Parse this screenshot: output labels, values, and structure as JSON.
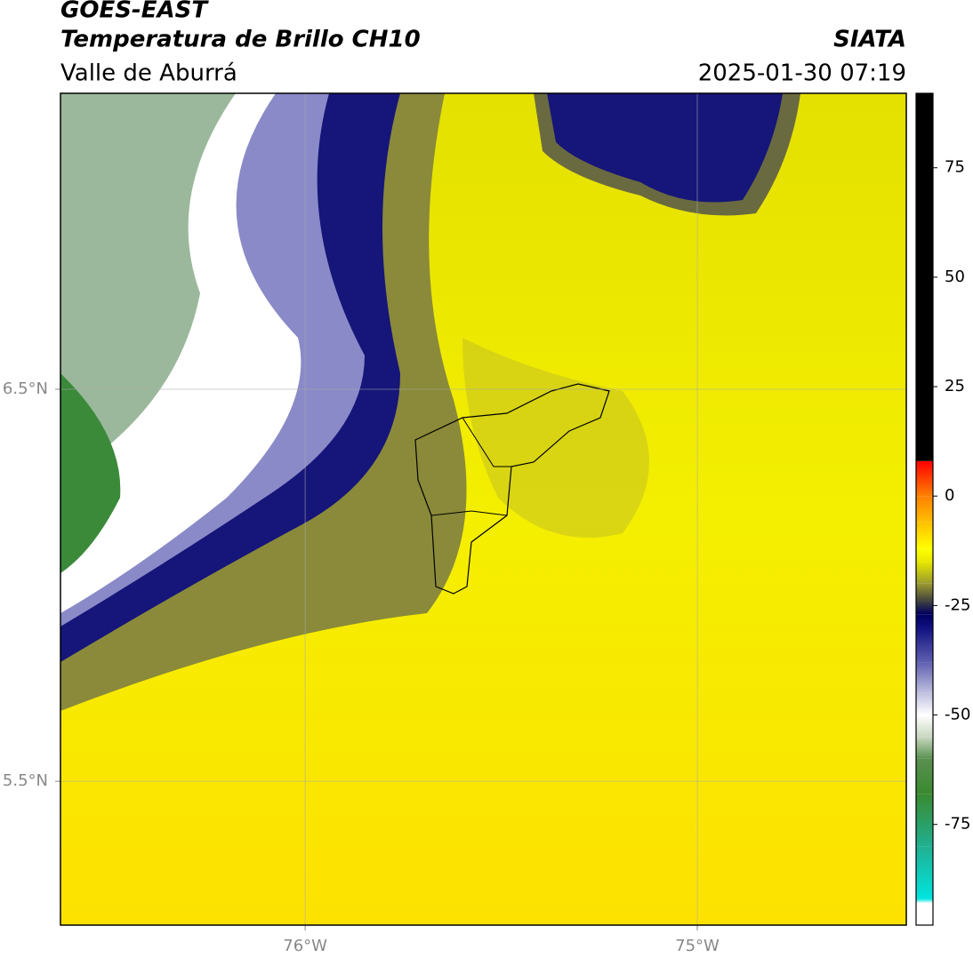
{
  "header": {
    "title": "GOES-EAST",
    "subtitle": "Temperatura de Brillo CH10",
    "source": "SIATA",
    "region": "Valle de Aburrá",
    "datetime": "2025-01-30 07:19"
  },
  "map": {
    "xlim": [
      -76.624,
      -74.467
    ],
    "ylim": [
      5.133,
      7.255
    ],
    "xticks": [
      {
        "value": -76,
        "label": "76°W"
      },
      {
        "value": -75,
        "label": "75°W"
      }
    ],
    "yticks": [
      {
        "value": 6.5,
        "label": "6.5°N"
      },
      {
        "value": 5.5,
        "label": "5.5°N"
      }
    ],
    "grid": true
  },
  "colorbar": {
    "lim": [
      -98,
      92
    ],
    "ticks": [
      75,
      50,
      25,
      0,
      -25,
      -50,
      -75
    ],
    "stops": [
      {
        "value": -98,
        "color": "#ffffff"
      },
      {
        "value": -93,
        "color": "#ffffff"
      },
      {
        "value": -92,
        "color": "#00e5e0"
      },
      {
        "value": -80,
        "color": "#20b090"
      },
      {
        "value": -68,
        "color": "#3a8a30"
      },
      {
        "value": -60,
        "color": "#5a9050"
      },
      {
        "value": -55,
        "color": "#c8d8c0"
      },
      {
        "value": -50,
        "color": "#ffffff"
      },
      {
        "value": -45,
        "color": "#c0c0e0"
      },
      {
        "value": -38,
        "color": "#6060b0"
      },
      {
        "value": -30,
        "color": "#101080"
      },
      {
        "value": -27,
        "color": "#000060"
      },
      {
        "value": -24,
        "color": "#404040"
      },
      {
        "value": -20,
        "color": "#9a9a30"
      },
      {
        "value": -15,
        "color": "#e8e800"
      },
      {
        "value": -12,
        "color": "#ffff00"
      },
      {
        "value": -6,
        "color": "#ffc000"
      },
      {
        "value": 0,
        "color": "#ff8000"
      },
      {
        "value": 8,
        "color": "#ff0000"
      },
      {
        "value": 8.01,
        "color": "#000000"
      },
      {
        "value": 92,
        "color": "#000000"
      }
    ]
  }
}
